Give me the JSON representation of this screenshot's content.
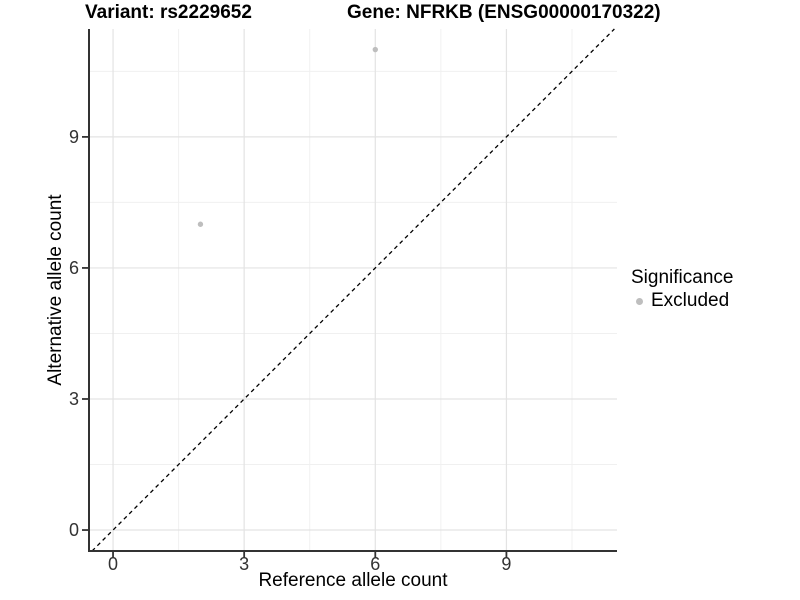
{
  "figure": {
    "title_left": "Variant: rs2229652",
    "title_right": "Gene: NFRKB (ENSG00000170322)"
  },
  "axes": {
    "x_title": "Reference allele count",
    "y_title": "Alternative allele count"
  },
  "legend": {
    "title": "Significance",
    "items": [
      {
        "label": "Excluded",
        "color": "#bebebe",
        "shape": "circle"
      }
    ]
  },
  "chart_data": {
    "type": "scatter",
    "title": "Variant: rs2229652 | Gene: NFRKB (ENSG00000170322)",
    "xlabel": "Reference allele count",
    "ylabel": "Alternative allele count",
    "xlim": [
      -0.55,
      11.53
    ],
    "ylim": [
      -0.48,
      11.47
    ],
    "x_ticks": [
      0,
      3,
      6,
      9
    ],
    "y_ticks": [
      0,
      3,
      6,
      9
    ],
    "minor_ticks": [
      1.5,
      4.5,
      7.5,
      10.5
    ],
    "grid": "major+minor",
    "legend_position": "right",
    "legend_title": "Significance",
    "series": [
      {
        "name": "Excluded",
        "color": "#bebebe",
        "marker": "circle",
        "points": [
          {
            "x": 2,
            "y": 7
          },
          {
            "x": 6,
            "y": 11
          }
        ]
      }
    ],
    "reference_line": {
      "kind": "identity",
      "style": "dashed",
      "color": "#000000"
    }
  },
  "colors": {
    "background": "#ffffff",
    "axis_line": "#333333",
    "tick_mark": "#333333",
    "grid_major": "#e3e3e3",
    "grid_minor": "#f0f0f0",
    "tick_label": "#333333",
    "point": "#bebebe"
  }
}
